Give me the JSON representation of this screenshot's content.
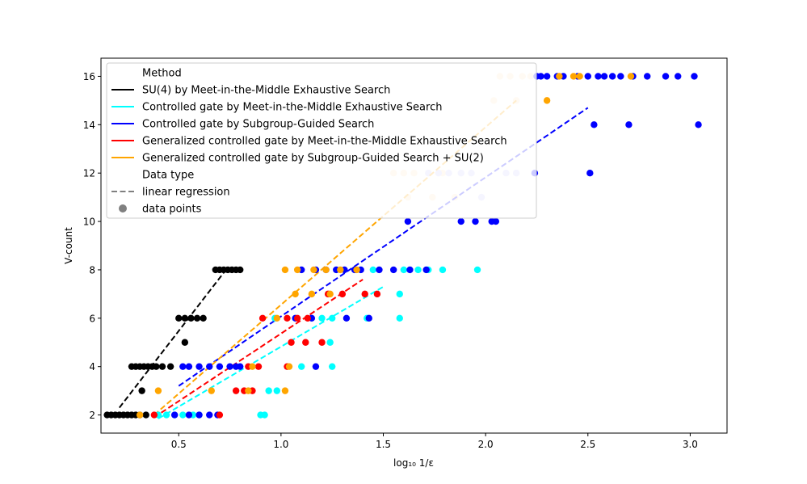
{
  "chart_data": {
    "type": "scatter",
    "xlabel": "log₁₀ 1/ε",
    "ylabel": "V-count",
    "xlim": [
      0.12,
      3.18
    ],
    "ylim": [
      1.25,
      16.75
    ],
    "xticks": [
      "0.5",
      "1.0",
      "1.5",
      "2.0",
      "2.5",
      "3.0"
    ],
    "yticks": [
      "2",
      "4",
      "6",
      "8",
      "10",
      "12",
      "14",
      "16"
    ],
    "grid": false,
    "legend": {
      "placement": "top-left",
      "hue_title": "Method",
      "style_title": "Data type",
      "style_entries": [
        {
          "label": "linear regression",
          "kind": "dashed",
          "color": "#808080"
        },
        {
          "label": "data points",
          "kind": "marker",
          "color": "#808080"
        }
      ]
    },
    "series": [
      {
        "name": "SU(4) by Meet-in-the-Middle Exhaustive Search",
        "color": "#000000",
        "points": [
          [
            0.15,
            2
          ],
          [
            0.17,
            2
          ],
          [
            0.19,
            2
          ],
          [
            0.21,
            2
          ],
          [
            0.23,
            2
          ],
          [
            0.25,
            2
          ],
          [
            0.27,
            2
          ],
          [
            0.29,
            2
          ],
          [
            0.31,
            2
          ],
          [
            0.34,
            2
          ],
          [
            0.32,
            3
          ],
          [
            0.27,
            4
          ],
          [
            0.29,
            4
          ],
          [
            0.31,
            4
          ],
          [
            0.33,
            4
          ],
          [
            0.35,
            4
          ],
          [
            0.37,
            4
          ],
          [
            0.39,
            4
          ],
          [
            0.42,
            4
          ],
          [
            0.46,
            4
          ],
          [
            0.5,
            6
          ],
          [
            0.53,
            6
          ],
          [
            0.56,
            6
          ],
          [
            0.59,
            6
          ],
          [
            0.62,
            6
          ],
          [
            0.53,
            5
          ],
          [
            0.68,
            8
          ],
          [
            0.7,
            8
          ],
          [
            0.72,
            8
          ],
          [
            0.74,
            8
          ],
          [
            0.76,
            8
          ],
          [
            0.78,
            8
          ],
          [
            0.8,
            8
          ]
        ],
        "regression": [
          [
            0.21,
            2.3
          ],
          [
            0.74,
            8.1
          ]
        ]
      },
      {
        "name": "Controlled gate by Meet-in-the-Middle Exhaustive Search",
        "color": "#00ffff",
        "points": [
          [
            0.4,
            2
          ],
          [
            0.44,
            2
          ],
          [
            0.48,
            2
          ],
          [
            0.52,
            2
          ],
          [
            0.57,
            2
          ],
          [
            0.6,
            2
          ],
          [
            0.9,
            2
          ],
          [
            0.92,
            2
          ],
          [
            0.94,
            3
          ],
          [
            0.98,
            3
          ],
          [
            1.1,
            4
          ],
          [
            1.25,
            4
          ],
          [
            0.97,
            6
          ],
          [
            1.2,
            6
          ],
          [
            1.25,
            6
          ],
          [
            1.42,
            6
          ],
          [
            1.58,
            6
          ],
          [
            1.24,
            5
          ],
          [
            1.58,
            7
          ],
          [
            1.45,
            8
          ],
          [
            1.6,
            8
          ],
          [
            1.67,
            8
          ],
          [
            1.72,
            8
          ],
          [
            1.79,
            8
          ],
          [
            1.96,
            8
          ]
        ],
        "regression": [
          [
            0.4,
            1.85
          ],
          [
            1.5,
            7.3
          ]
        ]
      },
      {
        "name": "Controlled gate by Subgroup-Guided Search",
        "color": "#0000ff",
        "points": [
          [
            0.48,
            2
          ],
          [
            0.55,
            2
          ],
          [
            0.6,
            2
          ],
          [
            0.65,
            2
          ],
          [
            0.69,
            2
          ],
          [
            0.52,
            4
          ],
          [
            0.55,
            4
          ],
          [
            0.6,
            4
          ],
          [
            0.65,
            4
          ],
          [
            0.7,
            4
          ],
          [
            0.75,
            4
          ],
          [
            0.78,
            4
          ],
          [
            0.8,
            4
          ],
          [
            1.17,
            4
          ],
          [
            1.07,
            6
          ],
          [
            1.15,
            6
          ],
          [
            1.32,
            6
          ],
          [
            1.43,
            6
          ],
          [
            1.1,
            8
          ],
          [
            1.17,
            8
          ],
          [
            1.22,
            8
          ],
          [
            1.27,
            8
          ],
          [
            1.31,
            8
          ],
          [
            1.36,
            8
          ],
          [
            1.39,
            8
          ],
          [
            1.48,
            8
          ],
          [
            1.55,
            8
          ],
          [
            1.63,
            8
          ],
          [
            1.71,
            8
          ],
          [
            1.62,
            10
          ],
          [
            1.88,
            10
          ],
          [
            1.95,
            10
          ],
          [
            2.03,
            10
          ],
          [
            2.05,
            10
          ],
          [
            2.24,
            12
          ],
          [
            2.51,
            12
          ],
          [
            2.53,
            14
          ],
          [
            2.7,
            14
          ],
          [
            3.04,
            14
          ],
          [
            2.25,
            16
          ],
          [
            2.27,
            16
          ],
          [
            2.3,
            16
          ],
          [
            2.35,
            16
          ],
          [
            2.38,
            16
          ],
          [
            2.45,
            16
          ],
          [
            2.5,
            16
          ],
          [
            2.55,
            16
          ],
          [
            2.58,
            16
          ],
          [
            2.62,
            16
          ],
          [
            2.66,
            16
          ],
          [
            2.72,
            16
          ],
          [
            2.79,
            16
          ],
          [
            2.88,
            16
          ],
          [
            2.94,
            16
          ],
          [
            3.02,
            16
          ]
        ],
        "regression": [
          [
            0.5,
            3.2
          ],
          [
            2.5,
            14.7
          ]
        ]
      },
      {
        "name": "Generalized controlled gate by Meet-in-the-Middle Exhaustive Search",
        "color": "#ff0000",
        "points": [
          [
            0.38,
            2
          ],
          [
            0.7,
            2
          ],
          [
            0.78,
            3
          ],
          [
            0.82,
            3
          ],
          [
            0.86,
            3
          ],
          [
            0.84,
            4
          ],
          [
            0.89,
            4
          ],
          [
            1.03,
            4
          ],
          [
            1.05,
            5
          ],
          [
            1.12,
            5
          ],
          [
            1.2,
            5
          ],
          [
            0.91,
            6
          ],
          [
            1.03,
            6
          ],
          [
            1.08,
            6
          ],
          [
            1.13,
            6
          ],
          [
            1.23,
            7
          ],
          [
            1.3,
            7
          ],
          [
            1.41,
            7
          ],
          [
            1.47,
            7
          ]
        ],
        "regression": [
          [
            0.38,
            1.9
          ],
          [
            1.4,
            7.6
          ]
        ]
      },
      {
        "name": "Generalized controlled gate by Subgroup-Guided Search + SU(2)",
        "color": "#ffa500",
        "points": [
          [
            0.31,
            2
          ],
          [
            0.4,
            3
          ],
          [
            0.66,
            3
          ],
          [
            0.84,
            3
          ],
          [
            0.86,
            4
          ],
          [
            1.04,
            4
          ],
          [
            0.98,
            6
          ],
          [
            1.07,
            7
          ],
          [
            1.15,
            7
          ],
          [
            1.24,
            7
          ],
          [
            1.02,
            3
          ],
          [
            1.02,
            8
          ],
          [
            1.08,
            8
          ],
          [
            1.16,
            8
          ],
          [
            1.22,
            8
          ],
          [
            1.29,
            8
          ],
          [
            1.37,
            8
          ],
          [
            2.3,
            15
          ],
          [
            2.36,
            16
          ],
          [
            2.43,
            16
          ],
          [
            2.46,
            16
          ],
          [
            2.71,
            16
          ]
        ],
        "regression": [
          [
            0.38,
            2.0
          ],
          [
            2.15,
            15.0
          ]
        ]
      }
    ],
    "faded_points": [
      {
        "color": "#ffe4c4",
        "points": [
          [
            1.55,
            12
          ],
          [
            1.6,
            12
          ],
          [
            1.65,
            12
          ],
          [
            1.62,
            11
          ],
          [
            1.74,
            11
          ],
          [
            1.85,
            11
          ],
          [
            1.79,
            12
          ],
          [
            2.04,
            15
          ],
          [
            2.15,
            15
          ],
          [
            2.07,
            16
          ],
          [
            2.12,
            16
          ],
          [
            2.18,
            16
          ],
          [
            2.22,
            16
          ]
        ]
      },
      {
        "color": "#ccccff",
        "points": [
          [
            1.72,
            12
          ],
          [
            1.77,
            12
          ],
          [
            1.82,
            12
          ],
          [
            1.88,
            12
          ],
          [
            1.93,
            12
          ],
          [
            1.98,
            11
          ],
          [
            2.1,
            12
          ],
          [
            2.15,
            12
          ]
        ]
      }
    ]
  }
}
